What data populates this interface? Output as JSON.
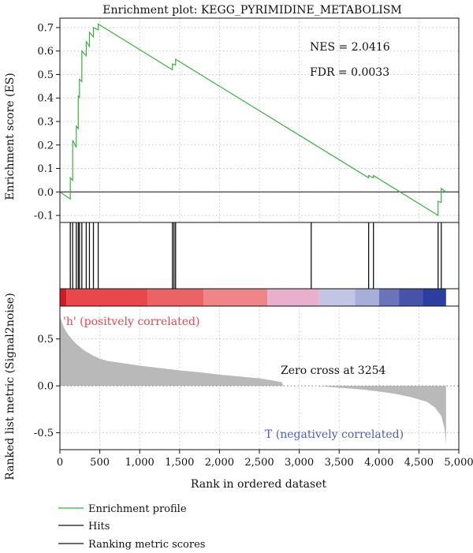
{
  "chart_data": {
    "type": "line",
    "title": "Enrichment plot: KEGG_PYRIMIDINE_METABOLISM",
    "x_axis": {
      "label": "Rank in ordered dataset",
      "range": [
        0,
        5000
      ],
      "ticks": [
        0,
        500,
        1000,
        1500,
        2000,
        2500,
        3000,
        3500,
        4000,
        4500,
        5000
      ],
      "tick_labels": [
        "0",
        "500",
        "1,000",
        "1,500",
        "2,000",
        "2,500",
        "3,000",
        "3,500",
        "4,000",
        "4,500",
        "5,000"
      ]
    },
    "enrichment_panel": {
      "ylabel": "Enrichment score (ES)",
      "ylim": [
        -0.13,
        0.74
      ],
      "yticks": [
        -0.1,
        0.0,
        0.1,
        0.2,
        0.3,
        0.4,
        0.5,
        0.6,
        0.7
      ],
      "ytick_labels": [
        "-0.1",
        "0.0",
        "0.1",
        "0.2",
        "0.3",
        "0.4",
        "0.5",
        "0.6",
        "0.7"
      ],
      "grid": true,
      "series": [
        {
          "name": "Enrichment profile",
          "color": "#3cb043",
          "x": [
            0,
            130,
            130,
            160,
            160,
            205,
            205,
            230,
            230,
            245,
            245,
            275,
            275,
            330,
            330,
            370,
            370,
            420,
            420,
            480,
            480,
            1410,
            1410,
            1450,
            1450,
            3870,
            3870,
            3930,
            3930,
            4740,
            4740,
            4780,
            4780,
            4840
          ],
          "y": [
            0.0,
            -0.03,
            0.06,
            0.05,
            0.22,
            0.19,
            0.28,
            0.27,
            0.41,
            0.4,
            0.48,
            0.47,
            0.6,
            0.58,
            0.64,
            0.62,
            0.68,
            0.66,
            0.7,
            0.69,
            0.715,
            0.52,
            0.545,
            0.54,
            0.565,
            0.06,
            0.07,
            0.06,
            0.07,
            -0.1,
            -0.04,
            -0.045,
            0.015,
            0.0
          ]
        }
      ],
      "annotations": [
        {
          "text": "NES = 2.0416"
        },
        {
          "text": "FDR = 0.0033"
        }
      ]
    },
    "hits": {
      "positions": [
        130,
        160,
        205,
        230,
        245,
        275,
        330,
        370,
        420,
        480,
        1410,
        1430,
        1450,
        3150,
        3870,
        3930,
        4740,
        4780
      ]
    },
    "ranking_colorbar": {
      "segments": [
        {
          "from": 0,
          "to": 80,
          "color": "#d11a24"
        },
        {
          "from": 80,
          "to": 1100,
          "color": "#e8474c"
        },
        {
          "from": 1100,
          "to": 1800,
          "color": "#ec6366"
        },
        {
          "from": 1800,
          "to": 2600,
          "color": "#f08486"
        },
        {
          "from": 2600,
          "to": 3250,
          "color": "#e9b0cd"
        },
        {
          "from": 3250,
          "to": 3700,
          "color": "#c2c6e4"
        },
        {
          "from": 3700,
          "to": 4000,
          "color": "#a8aed8"
        },
        {
          "from": 4000,
          "to": 4250,
          "color": "#6a74bd"
        },
        {
          "from": 4250,
          "to": 4550,
          "color": "#4553ab"
        },
        {
          "from": 4550,
          "to": 4840,
          "color": "#2c3ea0"
        }
      ]
    },
    "ranked_metric_panel": {
      "ylabel": "Ranked list metric (Signal2noise)",
      "ylim": [
        -0.68,
        0.85
      ],
      "yticks": [
        -0.5,
        0.0,
        0.5
      ],
      "ytick_labels": [
        "-0.5",
        "0.0",
        "0.5"
      ],
      "grid": true,
      "fill_color": "#b9b9b9",
      "series": [
        {
          "name": "Ranking metric scores",
          "x": [
            0,
            50,
            100,
            200,
            300,
            400,
            500,
            600,
            800,
            1000,
            1250,
            1500,
            1750,
            2000,
            2250,
            2500,
            2650,
            2780,
            2800,
            3254,
            3350,
            3500,
            3800,
            4000,
            4200,
            4400,
            4600,
            4700,
            4780,
            4820,
            4840
          ],
          "y": [
            0.74,
            0.62,
            0.55,
            0.45,
            0.38,
            0.33,
            0.29,
            0.265,
            0.24,
            0.215,
            0.19,
            0.165,
            0.145,
            0.12,
            0.1,
            0.08,
            0.06,
            0.04,
            0.0,
            0.0,
            -0.01,
            -0.02,
            -0.04,
            -0.06,
            -0.085,
            -0.12,
            -0.17,
            -0.23,
            -0.32,
            -0.45,
            -0.62
          ]
        }
      ],
      "annotations": [
        {
          "text": "'h' (positvely correlated)",
          "color": "#e8474c"
        },
        {
          "text": "Zero cross at 3254"
        },
        {
          "text": "T (negatively correlated)",
          "color": "#4f5fb0"
        }
      ]
    },
    "legend": {
      "placement": "bottom-left",
      "entries": [
        {
          "label": "Enrichment profile",
          "color": "#3cb043"
        },
        {
          "label": "Hits",
          "color": "#111111"
        },
        {
          "label": "Ranking metric scores",
          "color": "#111111"
        }
      ]
    }
  }
}
